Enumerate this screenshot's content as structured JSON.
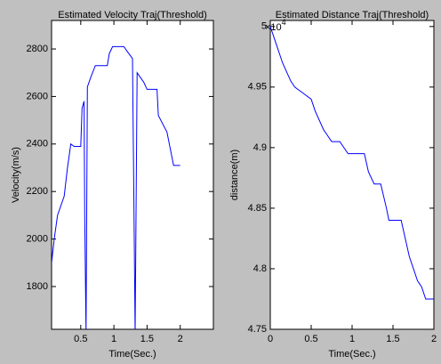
{
  "chart_data": [
    {
      "type": "line",
      "title": "Estimated Velocity Traj(Threshold)",
      "xlabel": "Time(Sec.)",
      "ylabel": "Velocity(m/s)",
      "x": [
        0.06,
        0.1,
        0.15,
        0.25,
        0.3,
        0.35,
        0.4,
        0.5,
        0.52,
        0.55,
        0.56,
        0.58,
        0.6,
        0.65,
        0.72,
        0.9,
        0.93,
        0.98,
        1.15,
        1.2,
        1.28,
        1.3,
        1.32,
        1.35,
        1.4,
        1.45,
        1.5,
        1.65,
        1.67,
        1.8,
        1.9,
        2.0
      ],
      "color": "#0000ff",
      "values": [
        1900,
        2000,
        2100,
        2180,
        2300,
        2400,
        2390,
        2390,
        2550,
        2580,
        2100,
        1600,
        2640,
        2680,
        2730,
        2730,
        2780,
        2810,
        2810,
        2790,
        2760,
        2200,
        1600,
        2700,
        2680,
        2660,
        2630,
        2630,
        2520,
        2450,
        2310,
        2310
      ],
      "xlim": [
        0.06,
        2.5
      ],
      "ylim": [
        1620,
        2920
      ],
      "xticks": [
        0.5,
        1,
        1.5,
        2
      ],
      "yticks": [
        1800,
        2000,
        2200,
        2400,
        2600,
        2800
      ]
    },
    {
      "type": "line",
      "title": "Estimated Distance Traj(Threshold)",
      "xlabel": "Time(Sec.)",
      "ylabel": "distance(m)",
      "y_multiplier": "×10",
      "y_multiplier_exp": "4",
      "x": [
        0,
        0.05,
        0.15,
        0.25,
        0.3,
        0.4,
        0.5,
        0.55,
        0.65,
        0.7,
        0.75,
        0.85,
        0.9,
        0.95,
        1.15,
        1.2,
        1.27,
        1.35,
        1.42,
        1.45,
        1.6,
        1.7,
        1.8,
        1.85,
        1.9,
        2.0
      ],
      "color": "#0000ff",
      "values": [
        5.0,
        4.99,
        4.97,
        4.955,
        4.95,
        4.945,
        4.94,
        4.93,
        4.915,
        4.91,
        4.905,
        4.905,
        4.9,
        4.895,
        4.895,
        4.88,
        4.87,
        4.87,
        4.85,
        4.84,
        4.84,
        4.81,
        4.79,
        4.785,
        4.775,
        4.775
      ],
      "xlim": [
        0,
        2
      ],
      "ylim": [
        4.75,
        5.005
      ],
      "xticks": [
        0,
        0.5,
        1,
        1.5,
        2
      ],
      "yticks": [
        4.75,
        4.8,
        4.85,
        4.9,
        4.95,
        5
      ]
    }
  ]
}
